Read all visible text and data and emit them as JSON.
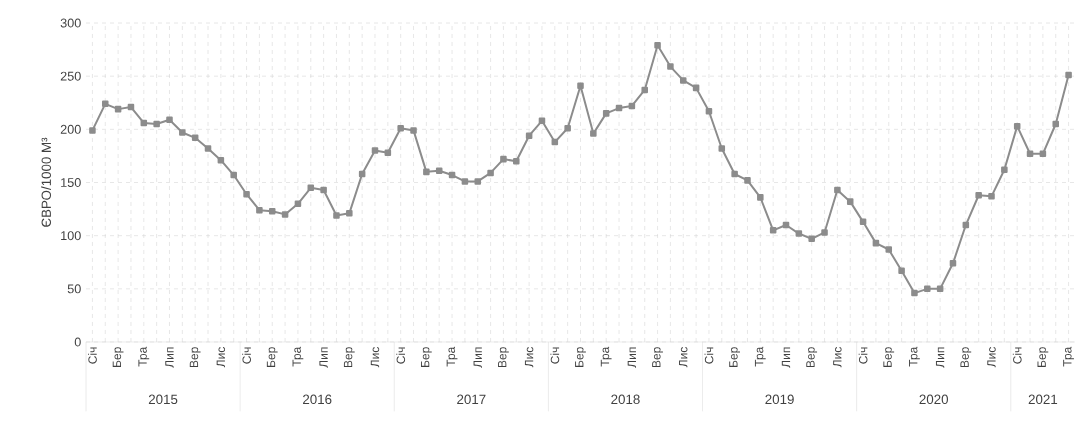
{
  "chart_data": {
    "type": "line",
    "ylabel": "ЄВРО/1000 М³",
    "categories": [
      "Січ",
      null,
      "Бер",
      null,
      "Тра",
      null,
      "Лип",
      null,
      "Вер",
      null,
      "Лис",
      null,
      "Січ",
      null,
      "Бер",
      null,
      "Тра",
      null,
      "Лип",
      null,
      "Вер",
      null,
      "Лис",
      null,
      "Січ",
      null,
      "Бер",
      null,
      "Тра",
      null,
      "Лип",
      null,
      "Вер",
      null,
      "Лис",
      null,
      "Січ",
      null,
      "Бер",
      null,
      "Тра",
      null,
      "Лип",
      null,
      "Вер",
      null,
      "Лис",
      null,
      "Січ",
      null,
      "Бер",
      null,
      "Тра",
      null,
      "Лип",
      null,
      "Вер",
      null,
      "Лис",
      null,
      "Січ",
      null,
      "Бер",
      null,
      "Тра",
      null,
      "Лип",
      null,
      "Вер",
      null,
      "Лис",
      null,
      "Січ",
      null,
      "Бер",
      null,
      "Тра"
    ],
    "values": [
      199,
      224,
      219,
      221,
      206,
      205,
      209,
      197,
      192,
      182,
      171,
      157,
      139,
      124,
      123,
      120,
      130,
      145,
      143,
      119,
      121,
      158,
      180,
      178,
      201,
      199,
      160,
      161,
      157,
      151,
      151,
      159,
      172,
      170,
      194,
      208,
      188,
      201,
      241,
      196,
      215,
      220,
      222,
      237,
      279,
      259,
      246,
      239,
      217,
      182,
      158,
      152,
      136,
      105,
      110,
      102,
      97,
      103,
      143,
      132,
      113,
      93,
      87,
      67,
      46,
      50,
      50,
      74,
      110,
      138,
      137,
      162,
      203,
      177,
      177,
      205,
      251
    ],
    "color": "#8c8c8c",
    "marker": "square",
    "line_style": "solid",
    "grid": true,
    "ylim": [
      0,
      300
    ],
    "yticks": [
      0,
      50,
      100,
      150,
      200,
      250,
      300
    ],
    "annotations": [
      "2015",
      "2016",
      "2017",
      "2018",
      "2019",
      "2020",
      "2021"
    ]
  }
}
